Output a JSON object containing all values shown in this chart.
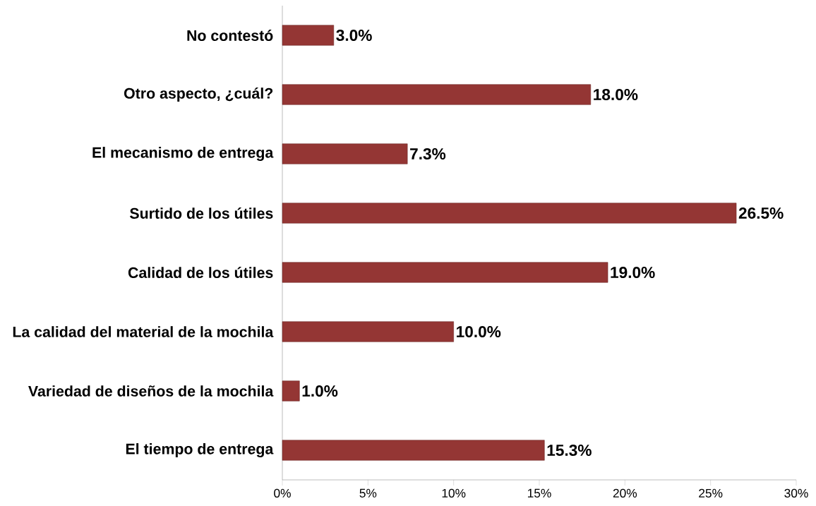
{
  "chart_data": {
    "type": "bar",
    "orientation": "horizontal",
    "categories": [
      "No contestó",
      "Otro aspecto, ¿cuál?",
      "El mecanismo de entrega",
      "Surtido de los útiles",
      "Calidad de los útiles",
      "La calidad del material de la mochila",
      "Variedad de diseños de la mochila",
      "El tiempo de entrega"
    ],
    "values": [
      3.0,
      18.0,
      7.3,
      26.5,
      19.0,
      10.0,
      1.0,
      15.3
    ],
    "value_labels": [
      "3.0%",
      "18.0%",
      "7.3%",
      "26.5%",
      "19.0%",
      "10.0%",
      "1.0%",
      "15.3%"
    ],
    "color": "#943634",
    "xlim": [
      0,
      30
    ],
    "xticks": [
      {
        "value": 0,
        "label": "0%"
      },
      {
        "value": 5,
        "label": "5%"
      },
      {
        "value": 10,
        "label": "10%"
      },
      {
        "value": 15,
        "label": "15%"
      },
      {
        "value": 20,
        "label": "20%"
      },
      {
        "value": 25,
        "label": "25%"
      },
      {
        "value": 30,
        "label": "30%"
      }
    ],
    "grid": false
  }
}
